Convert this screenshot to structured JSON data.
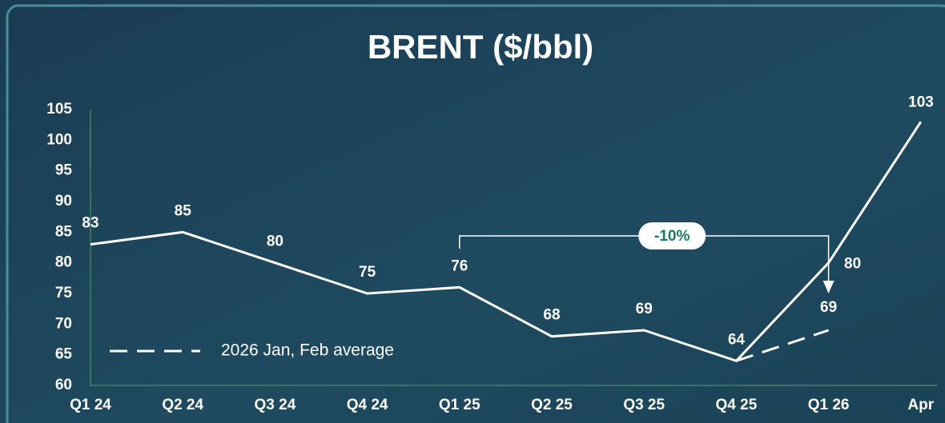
{
  "chart_data": {
    "type": "line",
    "title": "BRENT ($/bbl)",
    "categories": [
      "Q1 24",
      "Q2 24",
      "Q3 24",
      "Q4 24",
      "Q1 25",
      "Q2 25",
      "Q3 25",
      "Q4 25",
      "Q1 26",
      "Apr"
    ],
    "series": [
      {
        "color": "#ffffff",
        "dashed": false,
        "values": [
          83,
          85,
          80,
          75,
          76,
          68,
          69,
          64,
          80,
          103
        ]
      },
      {
        "name": "2026 Jan, Feb average",
        "color": "#ffffff",
        "dashed": true,
        "values": [
          null,
          null,
          null,
          null,
          null,
          null,
          null,
          64,
          69,
          null
        ]
      }
    ],
    "annotation": "-10%",
    "ylim": [
      60,
      105
    ],
    "yticks": [
      60,
      65,
      70,
      75,
      80,
      85,
      90,
      95,
      100,
      105
    ],
    "grid": false
  }
}
